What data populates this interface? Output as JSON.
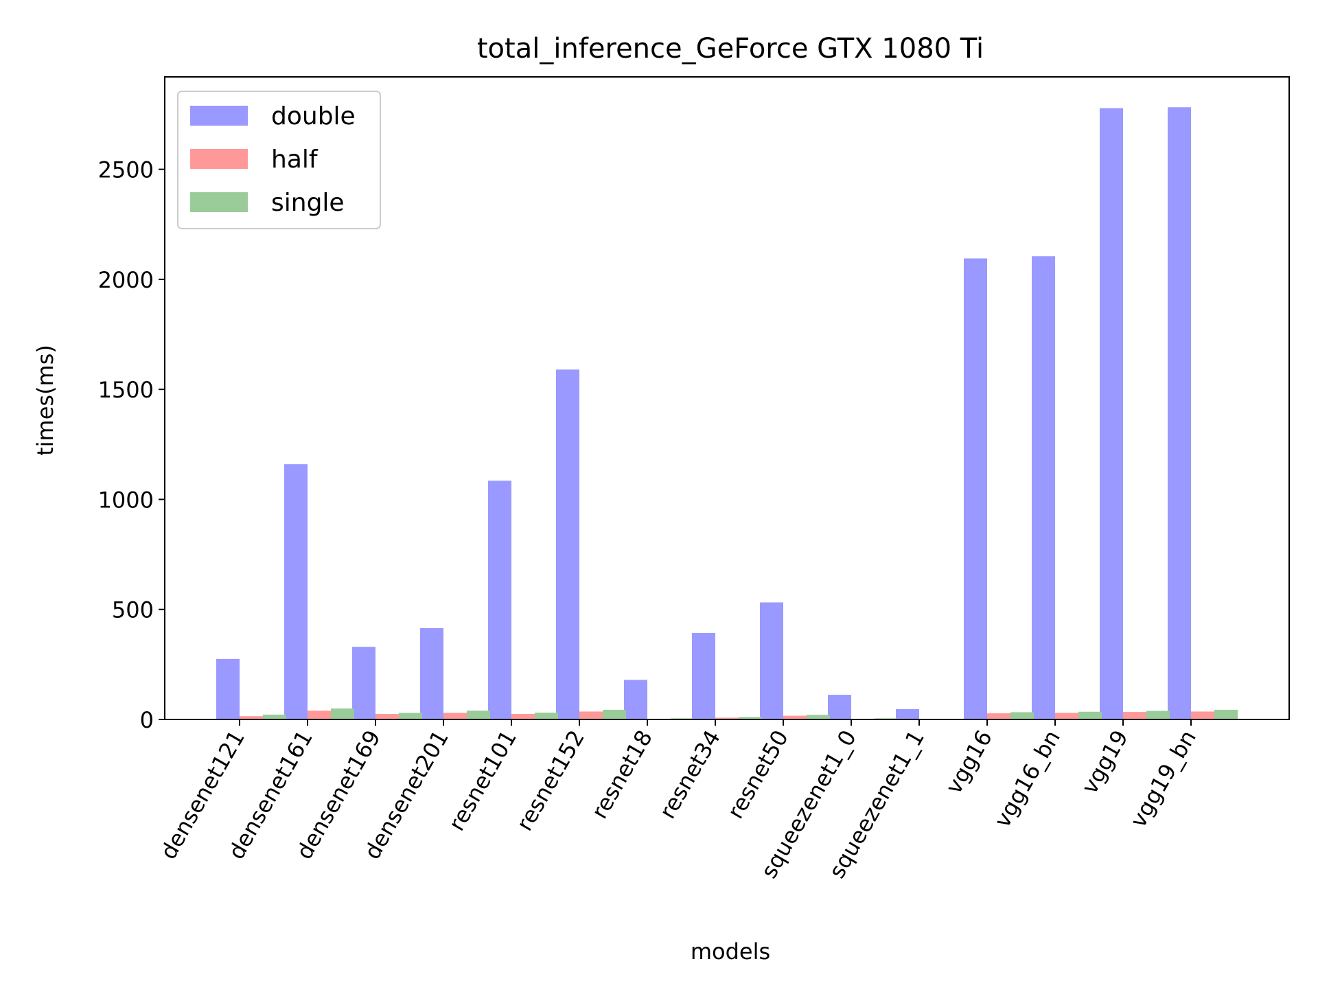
{
  "chart_data": {
    "type": "bar",
    "title": "total_inference_GeForce GTX 1080 Ti",
    "xlabel": "models",
    "ylabel": "times(ms)",
    "ylim": [
      0,
      2920
    ],
    "yticks": [
      0,
      500,
      1000,
      1500,
      2000,
      2500
    ],
    "grid": false,
    "legend_position": "top-left",
    "categories": [
      "densenet121",
      "densenet161",
      "densenet169",
      "densenet201",
      "resnet101",
      "resnet152",
      "resnet18",
      "resnet34",
      "resnet50",
      "squeezenet1_0",
      "squeezenet1_1",
      "vgg16",
      "vgg16_bn",
      "vgg19",
      "vgg19_bn"
    ],
    "series": [
      {
        "name": "double",
        "color": "#9999ff",
        "values": [
          275,
          1160,
          330,
          415,
          1085,
          1590,
          180,
          393,
          532,
          112,
          47,
          2095,
          2105,
          2778,
          2782
        ]
      },
      {
        "name": "half",
        "color": "#ff9999",
        "values": [
          15,
          40,
          25,
          30,
          25,
          36,
          3,
          8,
          17,
          2,
          1,
          28,
          30,
          34,
          36
        ]
      },
      {
        "name": "single",
        "color": "#99cc99",
        "values": [
          22,
          50,
          30,
          40,
          31,
          44,
          5,
          11,
          21,
          5,
          2,
          33,
          35,
          39,
          44
        ]
      }
    ]
  }
}
